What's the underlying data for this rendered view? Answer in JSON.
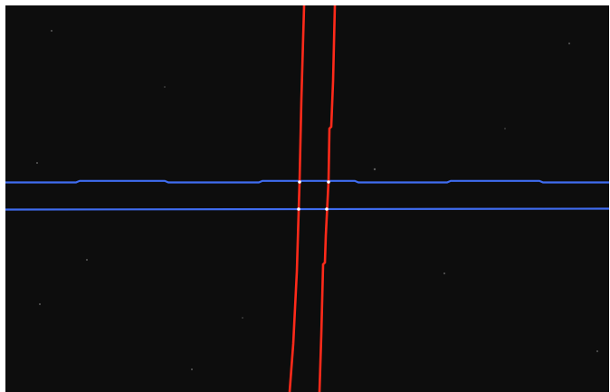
{
  "scene": {
    "background_color": "#0d0d0d",
    "border_color": "#ffffff",
    "horizontal_line_color": "#3f6cf0",
    "vertical_line_color": "#ff2a1a",
    "intersection_color": "#ffffff",
    "horizontal_line_count": 2,
    "vertical_line_count": 2
  }
}
